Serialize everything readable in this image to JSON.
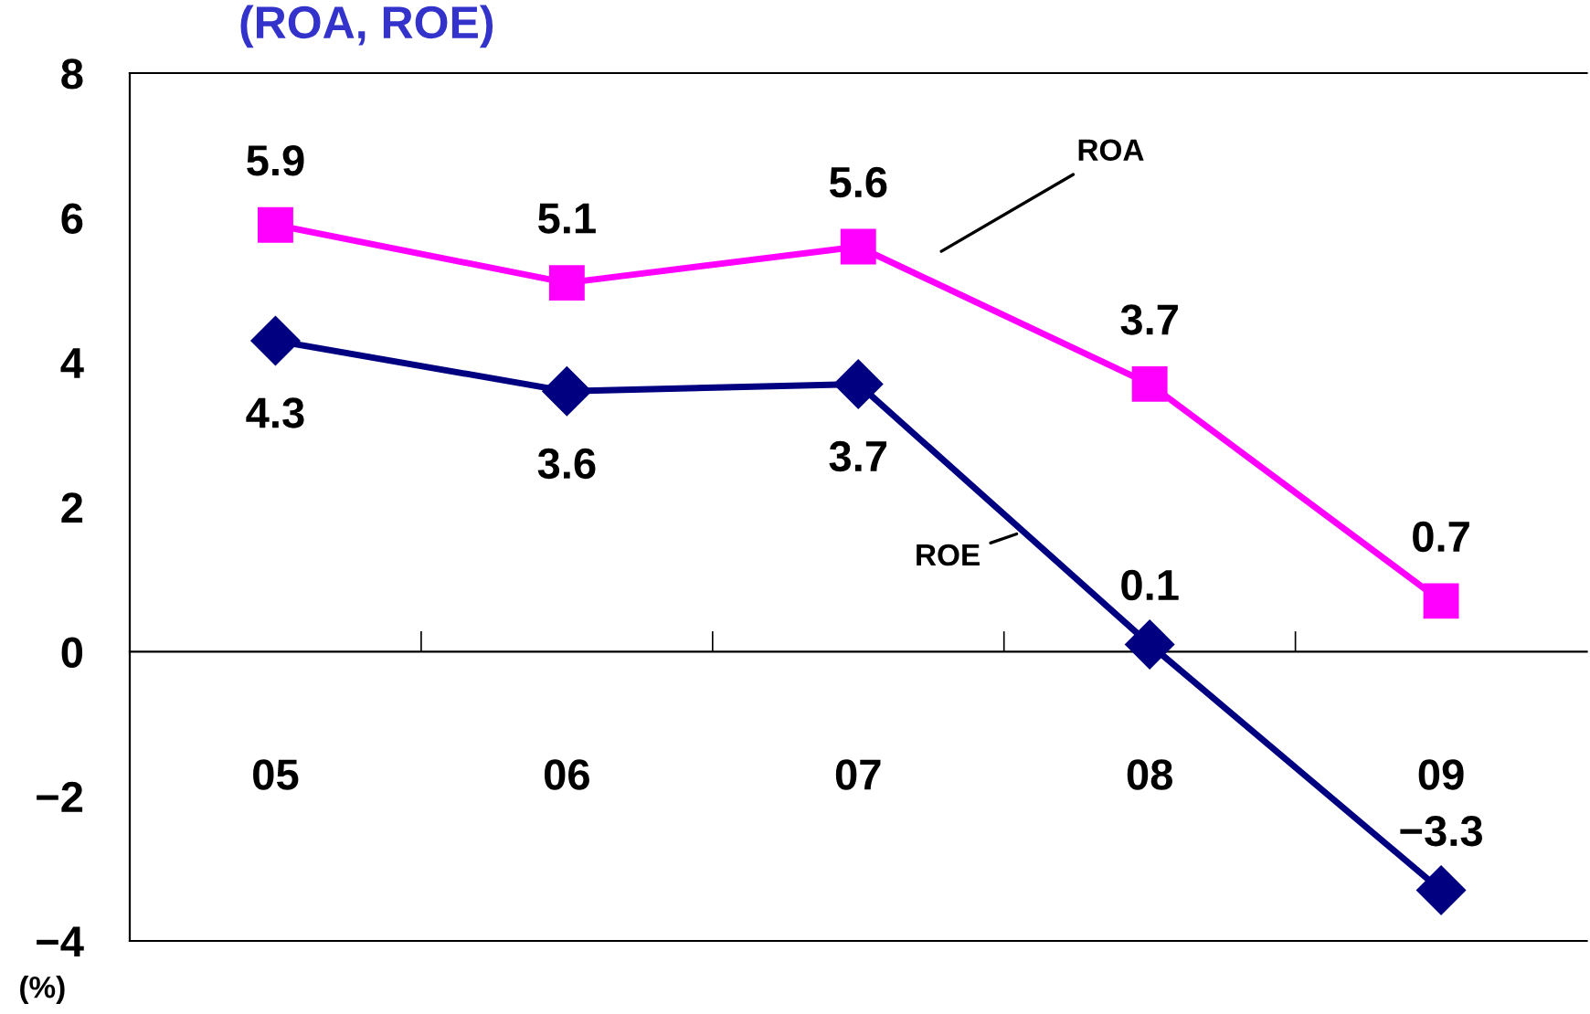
{
  "chart_data": {
    "type": "line",
    "title": "(ROA, ROE)",
    "ylabel": "(%)",
    "categories": [
      "05",
      "06",
      "07",
      "08",
      "09"
    ],
    "series": [
      {
        "name": "ROA",
        "color": "#ff00ff",
        "marker": "square",
        "values": [
          5.9,
          5.1,
          5.6,
          3.7,
          0.7
        ]
      },
      {
        "name": "ROE",
        "color": "#000080",
        "marker": "diamond",
        "values": [
          4.3,
          3.6,
          3.7,
          0.1,
          -3.3
        ]
      }
    ],
    "ylim": [
      -4,
      8
    ],
    "yticks": [
      -4,
      -2,
      0,
      2,
      4,
      6,
      8
    ],
    "grid": false,
    "legend": false,
    "data_labels": true
  }
}
